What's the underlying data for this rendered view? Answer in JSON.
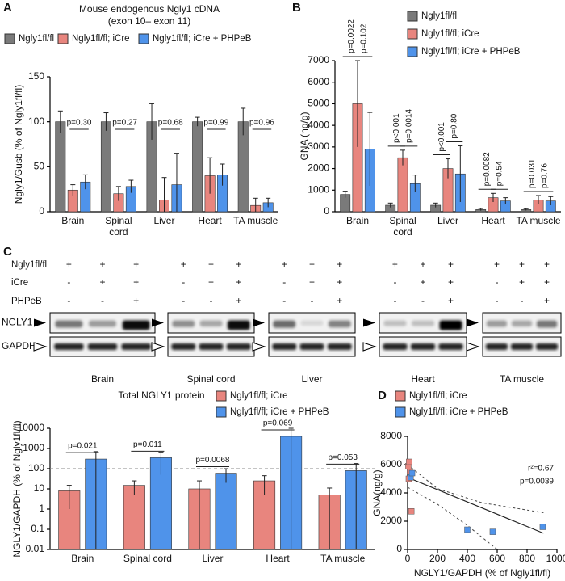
{
  "panel_labels": [
    "A",
    "B",
    "C",
    "D"
  ],
  "chart_data": [
    {
      "type": "bar",
      "title": "Mouse endogenous Ngly1 cDNA",
      "subtitle": "(exon 10– exon 11)",
      "y_label": "Ngly1/Gusb (% of Ngly1fl/fl)",
      "categories": [
        "Brain",
        "Spinal cord",
        "Liver",
        "Heart",
        "TA muscle"
      ],
      "series": [
        {
          "name": "Ngly1fl/fl",
          "color": "#7a7a7a",
          "values": [
            100,
            100,
            100,
            100,
            100
          ],
          "errors": [
            12,
            10,
            20,
            5,
            15
          ]
        },
        {
          "name": "Ngly1fl/fl; iCre",
          "color": "#e8857e",
          "values": [
            24,
            20,
            13,
            40,
            7
          ],
          "errors": [
            6,
            8,
            25,
            20,
            8
          ]
        },
        {
          "name": "Ngly1fl/fl; iCre + PHPeB",
          "color": "#4f93ea",
          "values": [
            33,
            28,
            30,
            41,
            10
          ],
          "errors": [
            8,
            7,
            35,
            12,
            5
          ]
        }
      ],
      "pvalues": [
        "p=0.30",
        "p=0.27",
        "p=0.68",
        "p=0.99",
        "p=0.96"
      ],
      "ylim": [
        0,
        150
      ],
      "yticks": [
        0,
        50,
        100,
        150
      ]
    },
    {
      "type": "bar",
      "y_label": "GNA (ng/g)",
      "categories": [
        "Brain",
        "Spinal cord",
        "Liver",
        "Heart",
        "TA muscle"
      ],
      "series": [
        {
          "name": "Ngly1fl/fl",
          "color": "#7a7a7a",
          "values": [
            800,
            300,
            300,
            100,
            100
          ],
          "errors": [
            150,
            100,
            100,
            50,
            40
          ]
        },
        {
          "name": "Ngly1fl/fl; iCre",
          "color": "#e8857e",
          "values": [
            5000,
            2500,
            2000,
            650,
            550
          ],
          "errors": [
            2000,
            350,
            450,
            200,
            200
          ]
        },
        {
          "name": "Ngly1fl/fl; iCre + PHPeB",
          "color": "#4f93ea",
          "values": [
            2900,
            1300,
            1750,
            500,
            500
          ],
          "errors": [
            1700,
            400,
            1300,
            150,
            200
          ]
        }
      ],
      "pvalues": [
        [
          "p=0.0022",
          "p=0.102"
        ],
        [
          "p<0.001",
          "p=0.0014"
        ],
        [
          "p<0.001",
          "p=0.80"
        ],
        [
          "p=0.0082",
          "p=0.54"
        ],
        [
          "p=0.031",
          "p=0.76"
        ]
      ],
      "ylim": [
        0,
        7000
      ],
      "yticks": [
        0,
        1000,
        2000,
        3000,
        4000,
        5000,
        6000,
        7000
      ]
    },
    {
      "type": "bar",
      "title": "Total NGLY1 protein",
      "y_label": "NGLY1/GAPDH (% of Ngly1fl/fl)",
      "log": true,
      "categories": [
        "Brain",
        "Spinal cord",
        "Liver",
        "Heart",
        "TA muscle"
      ],
      "series": [
        {
          "name": "Ngly1fl/fl; iCre",
          "color": "#e8857e",
          "values": [
            8,
            15,
            10,
            25,
            5
          ],
          "errors": [
            7,
            10,
            15,
            20,
            6
          ]
        },
        {
          "name": "Ngly1fl/fl; iCre + PHPeB",
          "color": "#4f93ea",
          "values": [
            300,
            350,
            60,
            4000,
            80
          ],
          "errors": [
            400,
            300,
            40,
            6000,
            100
          ]
        }
      ],
      "pvalues": [
        "p=0.021",
        "p=0.011",
        "p=0.0068",
        "p=0.069",
        "p=0.053"
      ],
      "reference_line": 100,
      "ylim": [
        0.01,
        10000
      ],
      "yticks": [
        0.01,
        0.1,
        1,
        10,
        100,
        1000,
        10000
      ]
    },
    {
      "type": "scatter",
      "x_label": "NGLY1/GAPDH (% of Ngly1fl/fl)",
      "y_label": "GNA(ng/g)",
      "series": [
        {
          "name": "Ngly1fl/fl; iCre",
          "color": "#e8857e",
          "x": [
            5,
            10,
            8,
            15,
            25
          ],
          "y": [
            5900,
            6200,
            5000,
            5500,
            2700
          ]
        },
        {
          "name": "Ngly1fl/fl; iCre + PHPeB",
          "color": "#4f93ea",
          "x": [
            20,
            30,
            400,
            570,
            905
          ],
          "y": [
            5100,
            5400,
            1400,
            1250,
            1600
          ]
        }
      ],
      "fit_line": {
        "x": [
          0,
          910
        ],
        "y": [
          5100,
          1150
        ]
      },
      "ci_upper": {
        "x": [
          0,
          200,
          500,
          910
        ],
        "y": [
          6000,
          4300,
          3300,
          2600
        ]
      },
      "ci_lower": {
        "x": [
          0,
          200,
          400,
          600
        ],
        "y": [
          4400,
          3200,
          1700,
          0
        ]
      },
      "annotations": [
        "r²=0.67",
        "p=0.0039"
      ],
      "xlim": [
        0,
        1000
      ],
      "xticks": [
        0,
        200,
        400,
        600,
        800,
        1000
      ],
      "ylim": [
        0,
        8000
      ],
      "yticks": [
        0,
        2000,
        4000,
        6000,
        8000
      ]
    }
  ],
  "blot": {
    "row_labels": [
      "Ngly1fl/fl",
      "iCre",
      "PHPeB"
    ],
    "band_labels": [
      "NGLY1",
      "GAPDH"
    ],
    "tissues": [
      {
        "name": "Brain",
        "signs": [
          [
            "+",
            "+",
            "+"
          ],
          [
            "-",
            "+",
            "+"
          ],
          [
            "-",
            "-",
            "+"
          ]
        ]
      },
      {
        "name": "Spinal cord",
        "signs": [
          [
            "+",
            "+",
            "+"
          ],
          [
            "-",
            "+",
            "+"
          ],
          [
            "-",
            "-",
            "+"
          ]
        ]
      },
      {
        "name": "Liver",
        "signs": [
          [
            "+",
            "+",
            "+"
          ],
          [
            "-",
            "+",
            "+"
          ],
          [
            "-",
            "-",
            "+"
          ]
        ]
      },
      {
        "name": "Heart",
        "signs": [
          [
            "+",
            "+",
            "+"
          ],
          [
            "-",
            "+",
            "+"
          ],
          [
            "-",
            "-",
            "+"
          ]
        ]
      },
      {
        "name": "TA muscle",
        "signs": [
          [
            "+",
            "+",
            "+"
          ],
          [
            "-",
            "+",
            "+"
          ],
          [
            "-",
            "-",
            "+"
          ]
        ]
      }
    ]
  }
}
